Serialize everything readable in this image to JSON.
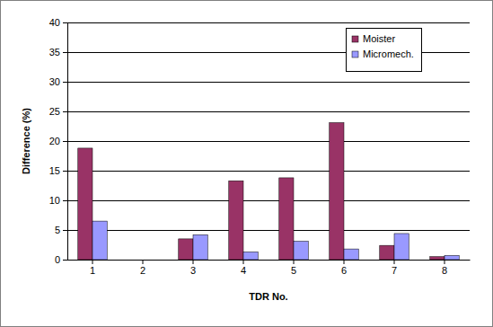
{
  "chart_data": {
    "type": "bar",
    "x_label": "TDR No.",
    "y_label": "Difference (%)",
    "categories": [
      "1",
      "2",
      "3",
      "4",
      "5",
      "6",
      "7",
      "8"
    ],
    "series": [
      {
        "name": "Moister",
        "color": "#993366",
        "values": [
          18.8,
          0,
          3.5,
          13.3,
          13.8,
          23.1,
          2.4,
          0.5
        ]
      },
      {
        "name": "Micromech.",
        "color": "#9999ff",
        "values": [
          6.5,
          0,
          4.2,
          1.3,
          3.1,
          1.8,
          4.4,
          0.7
        ]
      }
    ],
    "ylim": [
      0,
      40
    ],
    "yticks": [
      0,
      5,
      10,
      15,
      20,
      25,
      30,
      35,
      40
    ],
    "grid": true,
    "legend": "top-right"
  }
}
